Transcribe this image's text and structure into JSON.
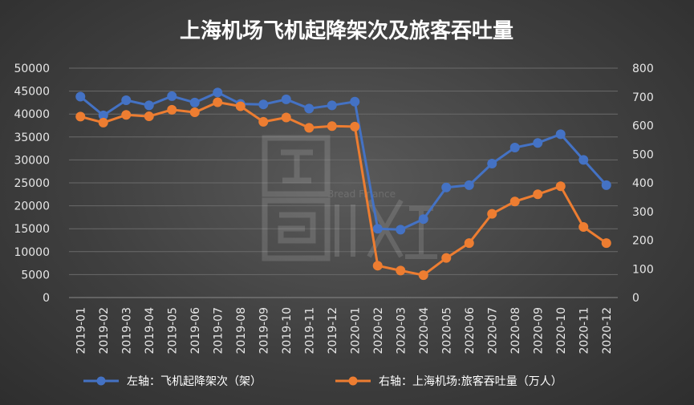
{
  "chart_data": {
    "type": "line",
    "title": "上海机场飞机起降架次及旅客吞吐量",
    "categories": [
      "2019-01",
      "2019-02",
      "2019-03",
      "2019-04",
      "2019-05",
      "2019-06",
      "2019-07",
      "2019-08",
      "2019-09",
      "2019-10",
      "2019-11",
      "2019-12",
      "2020-01",
      "2020-02",
      "2020-03",
      "2020-04",
      "2020-05",
      "2020-06",
      "2020-07",
      "2020-08",
      "2020-09",
      "2020-10",
      "2020-11",
      "2020-12"
    ],
    "y_left": {
      "min": 0,
      "max": 50000,
      "step": 5000,
      "ticks": [
        "0",
        "5000",
        "10000",
        "15000",
        "20000",
        "25000",
        "30000",
        "35000",
        "40000",
        "45000",
        "50000"
      ]
    },
    "y_right": {
      "min": 0,
      "max": 800,
      "step": 100,
      "ticks": [
        "0",
        "100",
        "200",
        "300",
        "400",
        "500",
        "600",
        "700",
        "800"
      ]
    },
    "grid": true,
    "legend_position": "bottom",
    "series": [
      {
        "name": "左轴：飞机起降架次（架）",
        "axis": "left",
        "color": "#4472c4",
        "values": [
          43800,
          39700,
          43000,
          41900,
          43900,
          42500,
          44700,
          42200,
          42100,
          43200,
          41200,
          41900,
          42700,
          15000,
          14800,
          17100,
          24000,
          24500,
          29200,
          32700,
          33700,
          35600,
          30000,
          24500
        ]
      },
      {
        "name": "右轴：上海机场:旅客吞吐量（万人）",
        "axis": "right",
        "color": "#ed7d31",
        "values": [
          631,
          610,
          637,
          632,
          655,
          646,
          681,
          667,
          613,
          628,
          592,
          598,
          596,
          111,
          94,
          78,
          138,
          190,
          292,
          335,
          360,
          388,
          246,
          190
        ]
      }
    ]
  },
  "watermark": {
    "text": "Bread Finance"
  }
}
